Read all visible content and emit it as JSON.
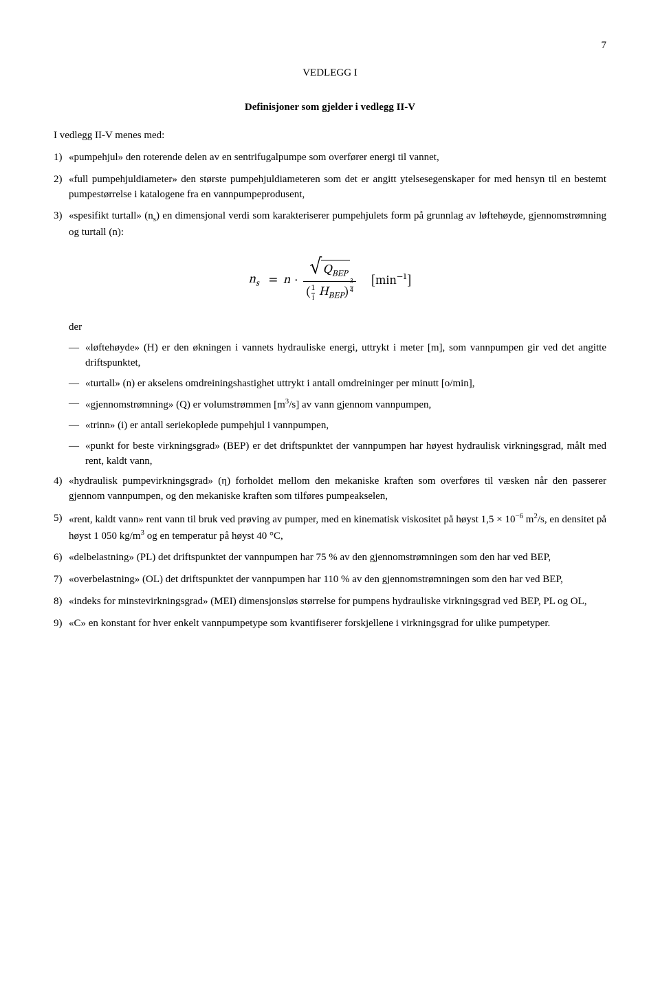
{
  "page_number": "7",
  "appendix_heading": "VEDLEGG I",
  "subtitle": "Definisjoner som gjelder i vedlegg II-V",
  "intro": "I vedlegg II-V menes med:",
  "items_top": [
    {
      "num": "1)",
      "text": "«pumpehjul» den roterende delen av en sentrifugalpumpe som overfører energi til vannet,"
    },
    {
      "num": "2)",
      "text": "«full pumpehjuldiameter» den største pumpehjuldiameteren som det er angitt ytelsesegenskaper for med hensyn til en bestemt pumpestørrelse i katalogene fra en vannpumpeprodusent,"
    },
    {
      "num": "3)",
      "text": "«spesifikt turtall» (n<sub>s</sub>) en dimensjonal verdi som karakteriserer pumpehjulets form på grunnlag av løftehøyde, gjennomstrømning og turtall (n):"
    }
  ],
  "formula": {
    "lhs_var": "n",
    "lhs_sub": "s",
    "rhs_n": "n",
    "q_label": "Q",
    "q_sub": "BEP",
    "one_over_i_num": "1",
    "one_over_i_den": "i",
    "h_label": "H",
    "h_sub": "BEP",
    "exp_num": "3",
    "exp_den": "4",
    "unit_open": "[min",
    "unit_exp": "−1",
    "unit_close": "]"
  },
  "der_label": "der",
  "dash_items": [
    "«løftehøyde» (H) er den økningen i vannets hydrauliske energi, uttrykt i meter [m], som vannpumpen gir ved det angitte driftspunktet,",
    "«turtall» (n) er akselens omdreiningshastighet uttrykt i antall omdreininger per minutt [o/min],",
    "«gjennomstrømning» (Q) er volumstrømmen [m<sup>3</sup>/s] av vann gjennom vannpumpen,",
    "«trinn» (i) er antall seriekoplede pumpehjul i vannpumpen,",
    "«punkt for beste virkningsgrad» (BEP) er det driftspunktet der vannpumpen har høyest hydraulisk virkningsgrad, målt med rent, kaldt vann,"
  ],
  "items_bottom": [
    {
      "num": "4)",
      "text": "«hydraulisk pumpevirkningsgrad» (η) forholdet mellom den mekaniske kraften som overføres til væsken når den passerer gjennom vannpumpen, og den mekaniske kraften som tilføres pumpeakselen,"
    },
    {
      "num": "5)",
      "text": "«rent, kaldt vann» rent vann til bruk ved prøving av pumper, med en kinematisk viskositet på høyst 1,5 × 10<sup>−6</sup> m<sup>2</sup>/s, en densitet på høyst 1 050 kg/m<sup>3</sup> og en temperatur på høyst 40 °C,"
    },
    {
      "num": "6)",
      "text": "«delbelastning» (PL) det driftspunktet der vannpumpen har 75 % av den gjennomstrømningen som den har ved BEP,"
    },
    {
      "num": "7)",
      "text": "«overbelastning» (OL) det driftspunktet der vannpumpen har 110 % av den gjennomstrømningen som den har ved BEP,"
    },
    {
      "num": "8)",
      "text": "«indeks for minstevirkningsgrad» (MEI) dimensjonsløs størrelse for pumpens hydrauliske virkningsgrad ved BEP, PL og OL,"
    },
    {
      "num": "9)",
      "text": "«C» en konstant for hver enkelt vannpumpetype som kvantifiserer forskjellene i virkningsgrad for ulike pumpetyper."
    }
  ]
}
